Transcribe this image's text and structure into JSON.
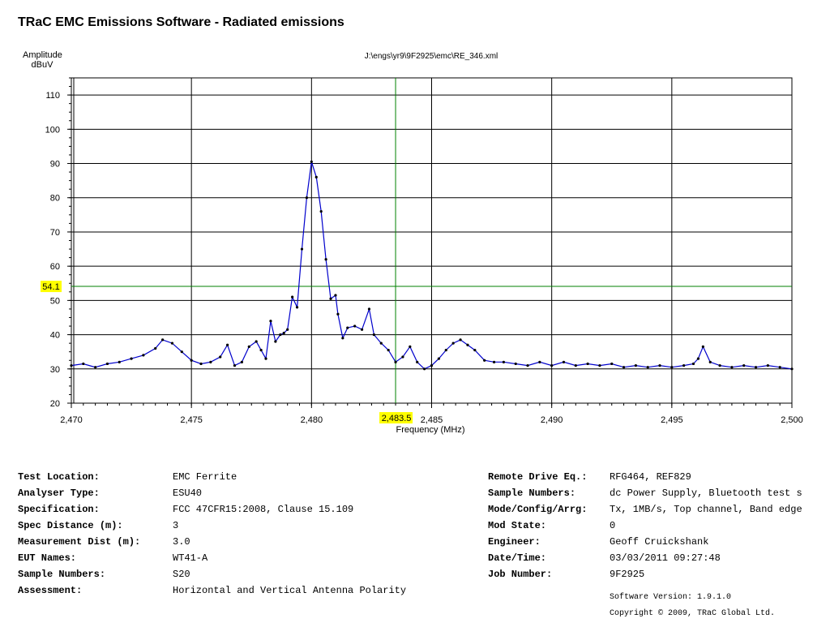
{
  "app_title": "TRaC EMC Emissions Software - Radiated emissions",
  "file_path": "J:\\engs\\yr9\\9F2925\\emc\\RE_346.xml",
  "chart_data": {
    "type": "line",
    "title": "J:\\engs\\yr9\\9F2925\\emc\\RE_346.xml",
    "xlabel": "Frequency (MHz)",
    "ylabel_lines": [
      "Amplitude",
      "dBuV"
    ],
    "xlim": [
      2470,
      2500
    ],
    "ylim": [
      20,
      115
    ],
    "x_ticks": [
      2470,
      2475,
      2480,
      2485,
      2490,
      2495,
      2500
    ],
    "x_tick_labels": [
      "2,470",
      "2,475",
      "2,480",
      "2,485",
      "2,490",
      "2,495",
      "2,500"
    ],
    "y_ticks": [
      20,
      30,
      40,
      50,
      60,
      70,
      80,
      90,
      100,
      110
    ],
    "y_tick_labels": [
      "20",
      "30",
      "40",
      "50",
      "60",
      "70",
      "80",
      "90",
      "100",
      "110"
    ],
    "grid": true,
    "limit_line": {
      "value": 54.1,
      "label": "54.1",
      "color": "#008000"
    },
    "marker_line": {
      "value": 2483.5,
      "label": "2,483.5",
      "color": "#008000"
    },
    "highlight_color": "#ffff00",
    "series": [
      {
        "color": "#0000cc",
        "x": [
          2470.0,
          2470.5,
          2471.0,
          2471.5,
          2472.0,
          2472.5,
          2473.0,
          2473.5,
          2473.8,
          2474.2,
          2474.6,
          2475.0,
          2475.4,
          2475.8,
          2476.2,
          2476.5,
          2476.8,
          2477.1,
          2477.4,
          2477.7,
          2477.9,
          2478.1,
          2478.3,
          2478.5,
          2478.7,
          2478.85,
          2479.0,
          2479.2,
          2479.4,
          2479.6,
          2479.8,
          2480.0,
          2480.2,
          2480.4,
          2480.6,
          2480.8,
          2481.0,
          2481.1,
          2481.3,
          2481.5,
          2481.8,
          2482.1,
          2482.4,
          2482.6,
          2482.9,
          2483.2,
          2483.5,
          2483.8,
          2484.1,
          2484.4,
          2484.7,
          2485.0,
          2485.3,
          2485.6,
          2485.9,
          2486.2,
          2486.5,
          2486.8,
          2487.2,
          2487.6,
          2488.0,
          2488.5,
          2489.0,
          2489.5,
          2490.0,
          2490.5,
          2491.0,
          2491.5,
          2492.0,
          2492.5,
          2493.0,
          2493.5,
          2494.0,
          2494.5,
          2495.0,
          2495.5,
          2495.9,
          2496.1,
          2496.3,
          2496.6,
          2497.0,
          2497.5,
          2498.0,
          2498.5,
          2499.0,
          2499.5,
          2500.0
        ],
        "y": [
          31.0,
          31.5,
          30.5,
          31.5,
          32.0,
          33.0,
          34.0,
          36.0,
          38.5,
          37.5,
          35.0,
          32.5,
          31.5,
          32.0,
          33.5,
          37.0,
          31.0,
          32.0,
          36.5,
          38.0,
          35.5,
          33.0,
          44.0,
          38.0,
          40.0,
          40.5,
          41.5,
          51.0,
          48.0,
          65.0,
          80.0,
          90.5,
          86.0,
          76.0,
          62.0,
          50.5,
          51.5,
          46.0,
          39.0,
          42.0,
          42.5,
          41.5,
          47.5,
          40.0,
          37.5,
          35.5,
          32.0,
          33.5,
          36.5,
          32.0,
          30.0,
          31.0,
          33.0,
          35.5,
          37.5,
          38.5,
          37.0,
          35.5,
          32.5,
          32.0,
          32.0,
          31.5,
          31.0,
          32.0,
          31.0,
          32.0,
          31.0,
          31.5,
          31.0,
          31.5,
          30.5,
          31.0,
          30.5,
          31.0,
          30.5,
          31.0,
          31.5,
          33.0,
          36.5,
          32.0,
          31.0,
          30.5,
          31.0,
          30.5,
          31.0,
          30.5,
          30.0
        ]
      }
    ]
  },
  "info_left": [
    {
      "label": "Test Location:",
      "value": "EMC Ferrite"
    },
    {
      "label": "Analyser Type:",
      "value": "ESU40"
    },
    {
      "label": "Specification:",
      "value": "FCC 47CFR15:2008, Clause 15.109"
    },
    {
      "label": "Spec Distance (m):",
      "value": "3"
    },
    {
      "label": "Measurement Dist (m):",
      "value": "3.0"
    },
    {
      "label": "EUT Names:",
      "value": "WT41-A"
    },
    {
      "label": "Sample Numbers:",
      "value": "S20"
    },
    {
      "label": "Assessment:",
      "value": "Horizontal and Vertical Antenna Polarity"
    }
  ],
  "info_right": [
    {
      "label": "Remote Drive Eq.:",
      "value": "RFG464, REF829"
    },
    {
      "label": "Sample Numbers:",
      "value": "dc Power Supply, Bluetooth test s"
    },
    {
      "label": "Mode/Config/Arrg:",
      "value": "Tx, 1MB/s, Top channel, Band edge"
    },
    {
      "label": "Mod State:",
      "value": "0"
    },
    {
      "label": "Engineer:",
      "value": "Geoff Cruickshank"
    },
    {
      "label": "Date/Time:",
      "value": "03/03/2011 09:27:48"
    },
    {
      "label": "Job Number:",
      "value": "9F2925"
    }
  ],
  "software_version": "Software Version: 1.9.1.0",
  "copyright": "Copyright © 2009, TRaC Global Ltd."
}
